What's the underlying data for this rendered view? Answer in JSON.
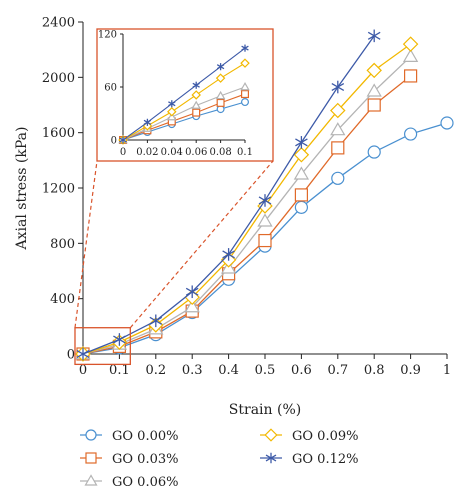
{
  "chart_data": [
    {
      "type": "line",
      "xlabel": "Strain (%)",
      "ylabel": "Axial stress (kPa)",
      "xlim": [
        0,
        1
      ],
      "ylim": [
        0,
        2400
      ],
      "xticks": [
        "0",
        "0.1",
        "0.2",
        "0.3",
        "0.4",
        "0.5",
        "0.6",
        "0.7",
        "0.8",
        "0.9",
        "1"
      ],
      "yticks": [
        "0",
        "400",
        "800",
        "1200",
        "1600",
        "2000",
        "2400"
      ],
      "grid": false,
      "legend_position": "bottom",
      "series": [
        {
          "name": "GO 0.00%",
          "color": "#4a90d0",
          "marker": "circle",
          "x": [
            0,
            0.1,
            0.2,
            0.3,
            0.4,
            0.5,
            0.6,
            0.7,
            0.8,
            0.9,
            1.0
          ],
          "y": [
            0,
            45,
            140,
            300,
            540,
            780,
            1060,
            1270,
            1460,
            1590,
            1670
          ]
        },
        {
          "name": "GO 0.03%",
          "color": "#e06a2a",
          "marker": "square",
          "x": [
            0,
            0.1,
            0.2,
            0.3,
            0.4,
            0.5,
            0.6,
            0.7,
            0.8,
            0.9
          ],
          "y": [
            0,
            55,
            160,
            310,
            580,
            820,
            1150,
            1490,
            1800,
            2010
          ]
        },
        {
          "name": "GO 0.06%",
          "color": "#b4b4b4",
          "marker": "triangle",
          "x": [
            0,
            0.1,
            0.2,
            0.3,
            0.4,
            0.5,
            0.6,
            0.7,
            0.8,
            0.9
          ],
          "y": [
            0,
            70,
            180,
            340,
            620,
            960,
            1300,
            1620,
            1900,
            2150
          ]
        },
        {
          "name": "GO 0.09%",
          "color": "#f2b800",
          "marker": "diamond",
          "x": [
            0,
            0.1,
            0.2,
            0.3,
            0.4,
            0.5,
            0.6,
            0.7,
            0.8,
            0.9
          ],
          "y": [
            0,
            85,
            210,
            410,
            680,
            1070,
            1440,
            1760,
            2050,
            2240
          ]
        },
        {
          "name": "GO 0.12%",
          "color": "#3d5aa8",
          "marker": "star",
          "x": [
            0,
            0.1,
            0.2,
            0.3,
            0.4,
            0.5,
            0.6,
            0.7,
            0.8
          ],
          "y": [
            0,
            105,
            240,
            450,
            720,
            1110,
            1530,
            1930,
            2300
          ]
        }
      ]
    },
    {
      "type": "line",
      "xlim": [
        0,
        0.1
      ],
      "ylim": [
        0,
        120
      ],
      "xticks": [
        "0",
        "0.02",
        "0.04",
        "0.06",
        "0.08",
        "0.1"
      ],
      "yticks": [
        "0",
        "60",
        "120"
      ],
      "series": [
        {
          "name": "GO 0.00%",
          "color": "#4a90d0",
          "marker": "circle",
          "x": [
            0,
            0.02,
            0.04,
            0.06,
            0.08,
            0.1
          ],
          "y": [
            0,
            9,
            18,
            27,
            35,
            43
          ]
        },
        {
          "name": "GO 0.03%",
          "color": "#e06a2a",
          "marker": "square",
          "x": [
            0,
            0.02,
            0.04,
            0.06,
            0.08,
            0.1
          ],
          "y": [
            0,
            11,
            21,
            31,
            42,
            52
          ]
        },
        {
          "name": "GO 0.06%",
          "color": "#b4b4b4",
          "marker": "triangle",
          "x": [
            0,
            0.02,
            0.04,
            0.06,
            0.08,
            0.1
          ],
          "y": [
            0,
            13,
            26,
            39,
            50,
            60
          ]
        },
        {
          "name": "GO 0.09%",
          "color": "#f2b800",
          "marker": "diamond",
          "x": [
            0,
            0.02,
            0.04,
            0.06,
            0.08,
            0.1
          ],
          "y": [
            0,
            16,
            32,
            51,
            70,
            87
          ]
        },
        {
          "name": "GO 0.12%",
          "color": "#3d5aa8",
          "marker": "star",
          "x": [
            0,
            0.02,
            0.04,
            0.06,
            0.08,
            0.1
          ],
          "y": [
            0,
            20,
            41,
            62,
            83,
            104
          ]
        }
      ]
    }
  ],
  "colors": {
    "inset_frame": "#d9542b",
    "axis": "#222222"
  }
}
